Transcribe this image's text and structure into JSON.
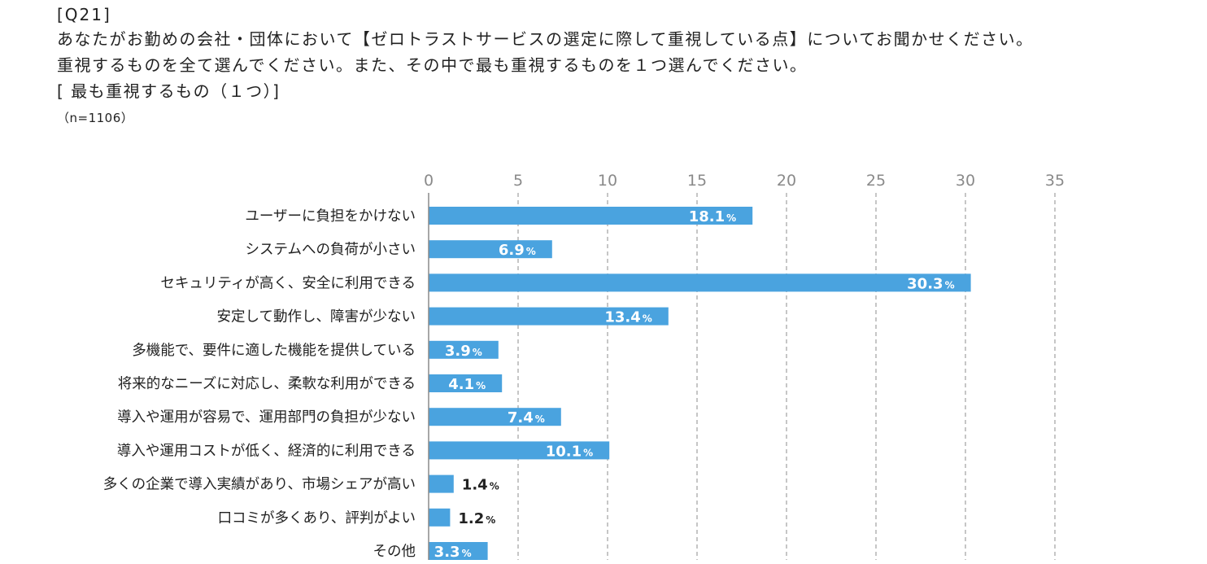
{
  "question": {
    "id": "[Q21]",
    "line1": "あなたがお勤めの会社・団体において【ゼロトラストサービスの選定に際して重視している点】についてお聞かせください。",
    "line2": "重視するものを全て選んでください。また、その中で最も重視するものを１つ選んでください。",
    "line3": "[ 最も重視するもの（１つ）]",
    "n": "（n=1106）"
  },
  "chart_data": {
    "type": "bar",
    "orientation": "horizontal",
    "categories": [
      "ユーザーに負担をかけない",
      "システムへの負荷が小さい",
      "セキュリティが高く、安全に利用できる",
      "安定して動作し、障害が少ない",
      "多機能で、要件に適した機能を提供している",
      "将来的なニーズに対応し、柔軟な利用ができる",
      "導入や運用が容易で、運用部門の負担が少ない",
      "導入や運用コストが低く、経済的に利用できる",
      "多くの企業で導入実績があり、市場シェアが高い",
      "口コミが多くあり、評判がよい",
      "その他"
    ],
    "values": [
      18.1,
      6.9,
      30.3,
      13.4,
      3.9,
      4.1,
      7.4,
      10.1,
      1.4,
      1.2,
      3.3
    ],
    "value_suffix": "%",
    "xlim": [
      0,
      35
    ],
    "xticks": [
      0,
      5,
      10,
      15,
      20,
      25,
      30,
      35
    ],
    "xaxis_position": "top",
    "grid": "vertical dashed",
    "bar_color": "#4aa3df",
    "inside_label_color": "#ffffff",
    "outside_label_color": "#222222",
    "grid_color": "#a0a0a0",
    "axis_color": "#8a8a8a"
  }
}
